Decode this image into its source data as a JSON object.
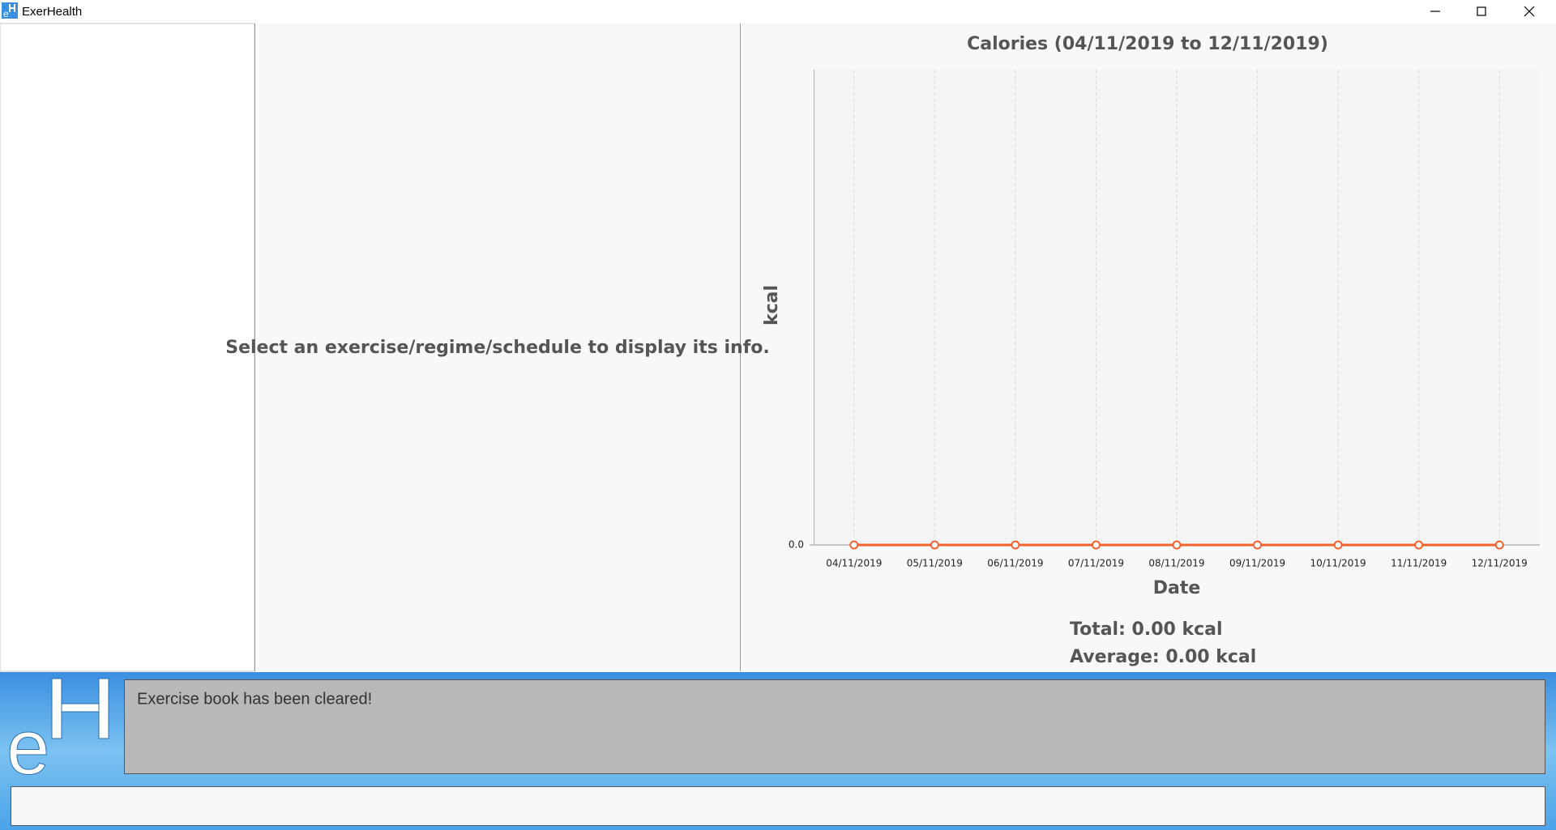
{
  "window": {
    "title": "ExerHealth"
  },
  "info_panel": {
    "message": "Select an exercise/regime/schedule to display its info."
  },
  "chart_data": {
    "type": "line",
    "title": "Calories (04/11/2019 to 12/11/2019)",
    "x_label": "Date",
    "y_label": "kcal",
    "categories": [
      "04/11/2019",
      "05/11/2019",
      "06/11/2019",
      "07/11/2019",
      "08/11/2019",
      "09/11/2019",
      "10/11/2019",
      "11/11/2019",
      "12/11/2019"
    ],
    "values": [
      0,
      0,
      0,
      0,
      0,
      0,
      0,
      0,
      0
    ],
    "color": "#f3622d",
    "ylim": [
      0,
      1
    ],
    "yticks": [
      {
        "value": 0,
        "label": "0.0"
      }
    ],
    "grid": true
  },
  "stats": {
    "total": "Total: 0.00 kcal",
    "average": "Average: 0.00 kcal"
  },
  "result_display": {
    "message": "Exercise book has been cleared!"
  }
}
